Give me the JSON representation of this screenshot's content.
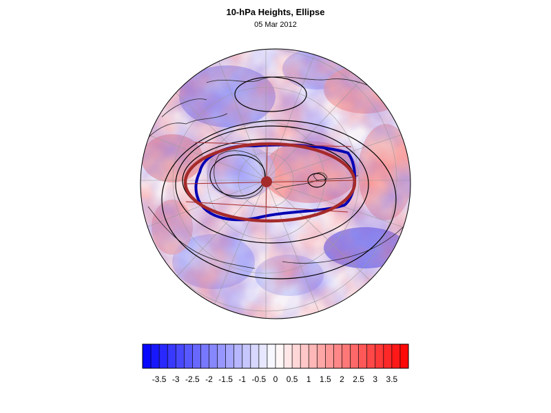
{
  "header": {
    "title": "10-hPa Heights, Ellipse",
    "date": "05 Mar 2012"
  },
  "colorbar": {
    "labels": [
      "-3.5",
      "-3",
      "-2.5",
      "-2",
      "-1.5",
      "-1",
      "-0.5",
      "0",
      "0.5",
      "1",
      "1.5",
      "2",
      "2.5",
      "3",
      "3.5"
    ],
    "min": -4,
    "max": 4,
    "step": 0.25,
    "colors": {
      "negative": "#0000ff",
      "neutral": "#ffffff",
      "positive": "#ff0000"
    }
  },
  "overlays": {
    "ellipse_fit_color": "#a52a2a",
    "vortex_contour_color": "#0000b4",
    "height_contour_color": "#000000",
    "centroid_color": "#a52a2a"
  }
}
